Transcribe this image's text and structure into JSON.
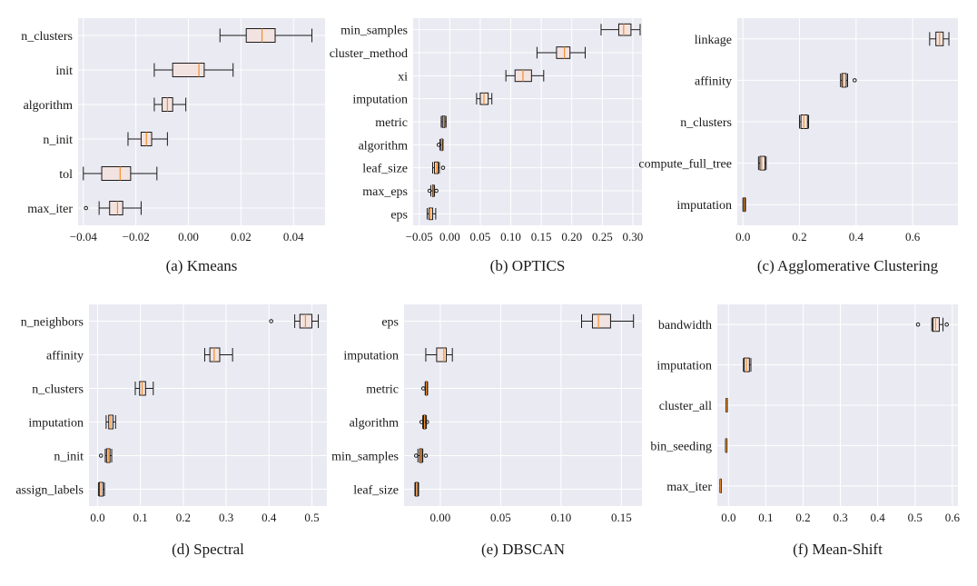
{
  "style": {
    "plot_bg": "#eaeaf2",
    "grid": "#ffffff",
    "box_fill": "#f3e3e0",
    "box_stroke": "#1a1a1a",
    "median": "#f28e2b",
    "text": "#1a1a1a"
  },
  "chart_data": [
    {
      "type": "box",
      "title": "(a) Kmeans",
      "xlim": [
        -0.042,
        0.052
      ],
      "xticks": [
        -0.04,
        -0.02,
        0.0,
        0.02,
        0.04
      ],
      "xtick_labels": [
        "−0.04",
        "−0.02",
        "0.00",
        "0.02",
        "0.04"
      ],
      "items": [
        {
          "label": "n_clusters",
          "whislo": 0.012,
          "q1": 0.022,
          "med": 0.028,
          "q3": 0.033,
          "whishi": 0.047,
          "fliers": []
        },
        {
          "label": "init",
          "whislo": -0.013,
          "q1": -0.006,
          "med": 0.004,
          "q3": 0.006,
          "whishi": 0.017,
          "fliers": []
        },
        {
          "label": "algorithm",
          "whislo": -0.013,
          "q1": -0.01,
          "med": -0.008,
          "q3": -0.006,
          "whishi": -0.001,
          "fliers": []
        },
        {
          "label": "n_init",
          "whislo": -0.023,
          "q1": -0.018,
          "med": -0.016,
          "q3": -0.014,
          "whishi": -0.008,
          "fliers": []
        },
        {
          "label": "tol",
          "whislo": -0.04,
          "q1": -0.033,
          "med": -0.026,
          "q3": -0.022,
          "whishi": -0.012,
          "fliers": []
        },
        {
          "label": "max_iter",
          "whislo": -0.034,
          "q1": -0.03,
          "med": -0.027,
          "q3": -0.025,
          "whishi": -0.018,
          "fliers": [
            -0.039
          ]
        }
      ]
    },
    {
      "type": "box",
      "title": "(b) OPTICS",
      "xlim": [
        -0.06,
        0.315
      ],
      "xticks": [
        -0.05,
        0.0,
        0.05,
        0.1,
        0.15,
        0.2,
        0.25,
        0.3
      ],
      "xtick_labels": [
        "−0.05",
        "0.00",
        "0.05",
        "0.10",
        "0.15",
        "0.20",
        "0.25",
        "0.30"
      ],
      "items": [
        {
          "label": "min_samples",
          "whislo": 0.248,
          "q1": 0.277,
          "med": 0.285,
          "q3": 0.297,
          "whishi": 0.312,
          "fliers": []
        },
        {
          "label": "cluster_method",
          "whislo": 0.143,
          "q1": 0.175,
          "med": 0.188,
          "q3": 0.197,
          "whishi": 0.222,
          "fliers": []
        },
        {
          "label": "xi",
          "whislo": 0.092,
          "q1": 0.107,
          "med": 0.12,
          "q3": 0.134,
          "whishi": 0.154,
          "fliers": []
        },
        {
          "label": "imputation",
          "whislo": 0.044,
          "q1": 0.05,
          "med": 0.056,
          "q3": 0.063,
          "whishi": 0.069,
          "fliers": []
        },
        {
          "label": "metric",
          "whislo": -0.014,
          "q1": -0.012,
          "med": -0.01,
          "q3": -0.008,
          "whishi": -0.006,
          "fliers": []
        },
        {
          "label": "algorithm",
          "whislo": -0.016,
          "q1": -0.014,
          "med": -0.013,
          "q3": -0.012,
          "whishi": -0.011,
          "fliers": [
            -0.018
          ]
        },
        {
          "label": "leaf_size",
          "whislo": -0.028,
          "q1": -0.025,
          "med": -0.022,
          "q3": -0.019,
          "whishi": -0.017,
          "fliers": [
            -0.011
          ]
        },
        {
          "label": "max_eps",
          "whislo": -0.031,
          "q1": -0.028,
          "med": -0.027,
          "q3": -0.026,
          "whishi": -0.025,
          "fliers": [
            -0.033,
            -0.022
          ]
        },
        {
          "label": "eps",
          "whislo": -0.037,
          "q1": -0.034,
          "med": -0.031,
          "q3": -0.028,
          "whishi": -0.023,
          "fliers": []
        }
      ]
    },
    {
      "type": "box",
      "title": "(c) Agglomerative Clustering",
      "xlim": [
        -0.02,
        0.76
      ],
      "xticks": [
        0.0,
        0.2,
        0.4,
        0.6
      ],
      "xtick_labels": [
        "0.0",
        "0.2",
        "0.4",
        "0.6"
      ],
      "items": [
        {
          "label": "linkage",
          "whislo": 0.66,
          "q1": 0.682,
          "med": 0.695,
          "q3": 0.708,
          "whishi": 0.728,
          "fliers": []
        },
        {
          "label": "affinity",
          "whislo": 0.345,
          "q1": 0.35,
          "med": 0.355,
          "q3": 0.365,
          "whishi": 0.37,
          "fliers": [
            0.395
          ]
        },
        {
          "label": "n_clusters",
          "whislo": 0.2,
          "q1": 0.205,
          "med": 0.215,
          "q3": 0.228,
          "whishi": 0.232,
          "fliers": []
        },
        {
          "label": "compute_full_tree",
          "whislo": 0.055,
          "q1": 0.06,
          "med": 0.066,
          "q3": 0.078,
          "whishi": 0.082,
          "fliers": []
        },
        {
          "label": "imputation",
          "whislo": 0.0,
          "q1": 0.002,
          "med": 0.004,
          "q3": 0.007,
          "whishi": 0.009,
          "fliers": []
        }
      ]
    },
    {
      "type": "box",
      "title": "(d) Spectral",
      "xlim": [
        -0.02,
        0.535
      ],
      "xticks": [
        0.0,
        0.1,
        0.2,
        0.3,
        0.4,
        0.5
      ],
      "xtick_labels": [
        "0.0",
        "0.1",
        "0.2",
        "0.3",
        "0.4",
        "0.5"
      ],
      "items": [
        {
          "label": "n_neighbors",
          "whislo": 0.46,
          "q1": 0.472,
          "med": 0.485,
          "q3": 0.5,
          "whishi": 0.515,
          "fliers": [
            0.405
          ]
        },
        {
          "label": "affinity",
          "whislo": 0.25,
          "q1": 0.262,
          "med": 0.272,
          "q3": 0.285,
          "whishi": 0.315,
          "fliers": []
        },
        {
          "label": "n_clusters",
          "whislo": 0.088,
          "q1": 0.098,
          "med": 0.104,
          "q3": 0.112,
          "whishi": 0.13,
          "fliers": []
        },
        {
          "label": "imputation",
          "whislo": 0.02,
          "q1": 0.026,
          "med": 0.031,
          "q3": 0.036,
          "whishi": 0.042,
          "fliers": []
        },
        {
          "label": "n_init",
          "whislo": 0.018,
          "q1": 0.021,
          "med": 0.025,
          "q3": 0.029,
          "whishi": 0.033,
          "fliers": [
            0.008
          ]
        },
        {
          "label": "assign_labels",
          "whislo": 0.002,
          "q1": 0.004,
          "med": 0.008,
          "q3": 0.013,
          "whishi": 0.016,
          "fliers": []
        }
      ]
    },
    {
      "type": "box",
      "title": "(e) DBSCAN",
      "xlim": [
        -0.03,
        0.167
      ],
      "xticks": [
        0.0,
        0.05,
        0.1,
        0.15
      ],
      "xtick_labels": [
        "0.00",
        "0.05",
        "0.10",
        "0.15"
      ],
      "items": [
        {
          "label": "eps",
          "whislo": 0.117,
          "q1": 0.126,
          "med": 0.131,
          "q3": 0.141,
          "whishi": 0.16,
          "fliers": []
        },
        {
          "label": "imputation",
          "whislo": -0.012,
          "q1": -0.003,
          "med": 0.003,
          "q3": 0.005,
          "whishi": 0.01,
          "fliers": []
        },
        {
          "label": "metric",
          "whislo": -0.0125,
          "q1": -0.012,
          "med": -0.0115,
          "q3": -0.011,
          "whishi": -0.0105,
          "fliers": [
            -0.014
          ]
        },
        {
          "label": "algorithm",
          "whislo": -0.0145,
          "q1": -0.0138,
          "med": -0.013,
          "q3": -0.0122,
          "whishi": -0.0115,
          "fliers": [
            -0.0155,
            -0.011
          ]
        },
        {
          "label": "min_samples",
          "whislo": -0.0185,
          "q1": -0.017,
          "med": -0.016,
          "q3": -0.015,
          "whishi": -0.0145,
          "fliers": [
            -0.02,
            -0.012
          ]
        },
        {
          "label": "leaf_size",
          "whislo": -0.021,
          "q1": -0.0205,
          "med": -0.0195,
          "q3": -0.0185,
          "whishi": -0.018,
          "fliers": []
        }
      ]
    },
    {
      "type": "box",
      "title": "(f) Mean-Shift",
      "xlim": [
        -0.03,
        0.615
      ],
      "xticks": [
        0.0,
        0.1,
        0.2,
        0.3,
        0.4,
        0.5,
        0.6
      ],
      "xtick_labels": [
        "0.0",
        "0.1",
        "0.2",
        "0.3",
        "0.4",
        "0.5",
        "0.6"
      ],
      "items": [
        {
          "label": "bandwidth",
          "whislo": 0.545,
          "q1": 0.548,
          "med": 0.555,
          "q3": 0.565,
          "whishi": 0.575,
          "fliers": [
            0.508,
            0.585
          ]
        },
        {
          "label": "imputation",
          "whislo": 0.04,
          "q1": 0.042,
          "med": 0.048,
          "q3": 0.056,
          "whishi": 0.06,
          "fliers": []
        },
        {
          "label": "cluster_all",
          "whislo": -0.007,
          "q1": -0.006,
          "med": -0.005,
          "q3": -0.004,
          "whishi": -0.003,
          "fliers": []
        },
        {
          "label": "bin_seeding",
          "whislo": -0.008,
          "q1": -0.007,
          "med": -0.006,
          "q3": -0.005,
          "whishi": -0.004,
          "fliers": []
        },
        {
          "label": "max_iter",
          "whislo": -0.023,
          "q1": -0.022,
          "med": -0.021,
          "q3": -0.02,
          "whishi": -0.019,
          "fliers": []
        }
      ]
    }
  ]
}
